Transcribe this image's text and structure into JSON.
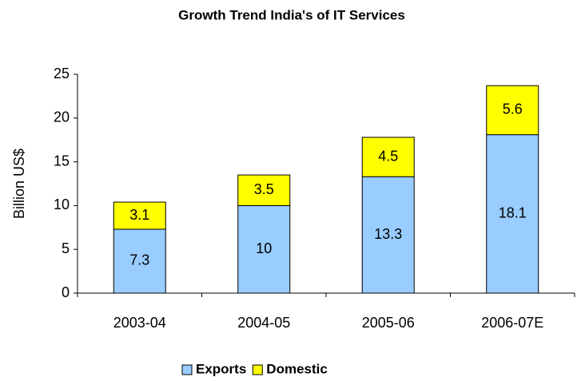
{
  "chart_data": {
    "type": "stacked_bar",
    "title": "Growth Trend India's of IT Services",
    "y_label": "Billion US$",
    "categories": [
      "2003-04",
      "2004-05",
      "2005-06",
      "2006-07E"
    ],
    "series": [
      {
        "name": "Exports",
        "color": "#99ccff",
        "values": [
          7.3,
          10,
          13.3,
          18.1
        ]
      },
      {
        "name": "Domestic",
        "color": "#ffff00",
        "values": [
          3.1,
          3.5,
          4.5,
          5.6
        ]
      }
    ],
    "ylim": [
      0,
      25
    ],
    "yticks": [
      0,
      5,
      10,
      15,
      20,
      25
    ],
    "legend": "bottom"
  }
}
